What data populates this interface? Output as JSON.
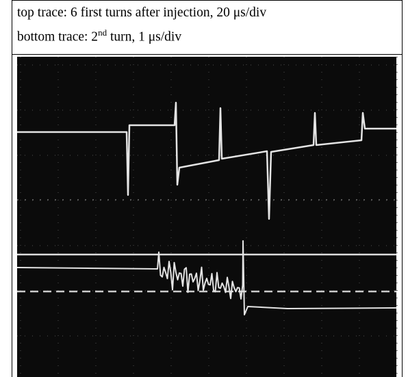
{
  "caption": {
    "line1": "top trace: 6 first turns after injection, 20 μs/div",
    "line2": {
      "before": "bottom trace: 2",
      "sup": "nd",
      "after": " turn, 1 μs/div"
    }
  }
}
